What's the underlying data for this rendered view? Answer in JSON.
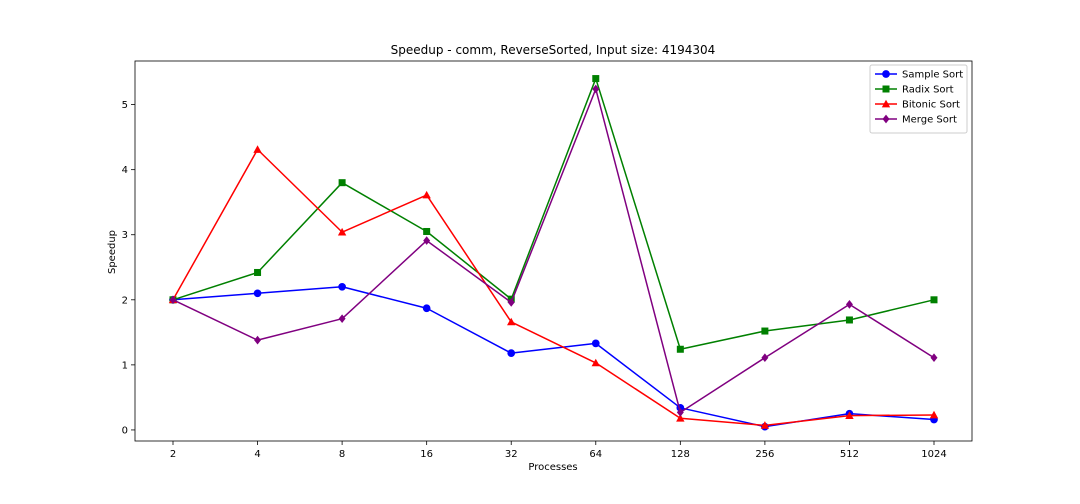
{
  "chart_data": {
    "type": "line",
    "title": "Speedup - comm, ReverseSorted, Input size: 4194304",
    "xlabel": "Processes",
    "ylabel": "Speedup",
    "categories": [
      "2",
      "4",
      "8",
      "16",
      "32",
      "64",
      "128",
      "256",
      "512",
      "1024"
    ],
    "ylim": [
      -0.17,
      5.67
    ],
    "yticks": [
      "0",
      "1",
      "2",
      "3",
      "4",
      "5"
    ],
    "grid": false,
    "legend_position": "upper right",
    "series": [
      {
        "name": "Sample Sort",
        "color": "#0000ff",
        "marker": "circle",
        "values": [
          2.0,
          2.1,
          2.2,
          1.87,
          1.18,
          1.33,
          0.34,
          0.05,
          0.25,
          0.16
        ]
      },
      {
        "name": "Radix Sort",
        "color": "#008000",
        "marker": "square",
        "values": [
          2.0,
          2.42,
          3.8,
          3.05,
          2.01,
          5.4,
          1.24,
          1.52,
          1.69,
          2.0
        ]
      },
      {
        "name": "Bitonic Sort",
        "color": "#ff0000",
        "marker": "triangle",
        "values": [
          2.0,
          4.31,
          3.04,
          3.61,
          1.66,
          1.03,
          0.18,
          0.07,
          0.22,
          0.23
        ]
      },
      {
        "name": "Merge Sort",
        "color": "#800080",
        "marker": "diamond",
        "values": [
          2.0,
          1.38,
          1.71,
          2.91,
          1.96,
          5.24,
          0.27,
          1.11,
          1.93,
          1.11
        ]
      }
    ]
  }
}
